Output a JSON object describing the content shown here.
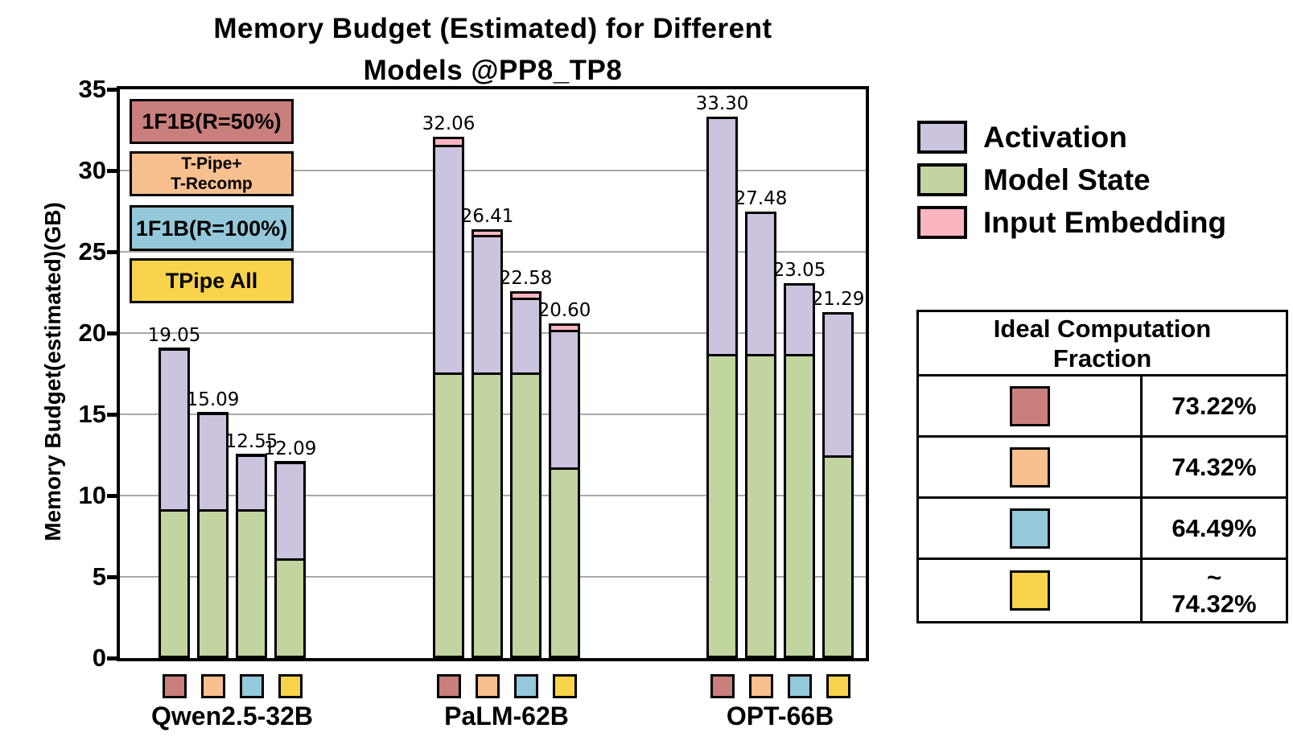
{
  "title": {
    "line1": "Memory Budget (Estimated) for Different",
    "line2": "Models @PP8_TP8"
  },
  "y_axis": {
    "label": "Memory Budget(estimated)(GB)",
    "ticks": [
      0,
      5,
      10,
      15,
      20,
      25,
      30,
      35
    ],
    "gridlines": [
      5,
      10,
      15,
      20,
      25,
      30
    ],
    "max": 35
  },
  "colors": {
    "method_1f1b_r50": "#C97F7C",
    "method_tpipe_trecomp": "#F8C08F",
    "method_1f1b_r100": "#93C9DB",
    "method_tpipe_all": "#F9D34C",
    "activation": "#CCC3DE",
    "model_state": "#C2D5A0",
    "input_embedding": "#FBB5C0",
    "gridline": "#A9A9A9",
    "border": "#000000"
  },
  "method_legend": [
    {
      "lines": [
        "1F1B(R=50%)"
      ],
      "color": "method_1f1b_r50"
    },
    {
      "lines": [
        "T-Pipe+",
        "T-Recomp"
      ],
      "color": "method_tpipe_trecomp"
    },
    {
      "lines": [
        "1F1B(R=100%)"
      ],
      "color": "method_1f1b_r100"
    },
    {
      "lines": [
        "TPipe All"
      ],
      "color": "method_tpipe_all"
    }
  ],
  "series_legend": [
    {
      "label": "Activation",
      "color": "activation"
    },
    {
      "label": "Model State",
      "color": "model_state"
    },
    {
      "label": "Input Embedding",
      "color": "input_embedding"
    }
  ],
  "chart_data": {
    "type": "bar",
    "stacked": true,
    "title": "Memory Budget (Estimated) for Different Models @PP8_TP8",
    "ylabel": "Memory Budget(estimated)(GB)",
    "ylim": [
      0,
      35
    ],
    "grid": true,
    "legend_position": "right",
    "categories": [
      "Qwen2.5-32B",
      "PaLM-62B",
      "OPT-66B"
    ],
    "methods": [
      "1F1B(R=50%)",
      "T-Pipe+T-Recomp",
      "1F1B(R=100%)",
      "TPipe All"
    ],
    "totals": [
      [
        19.05,
        15.09,
        12.55,
        12.09
      ],
      [
        32.06,
        26.41,
        22.58,
        20.6
      ],
      [
        33.3,
        27.48,
        23.05,
        21.29
      ]
    ],
    "total_labels": [
      [
        "19.05",
        "15.09",
        "12.55",
        "12.09"
      ],
      [
        "32.06",
        "26.41",
        "22.58",
        "20.60"
      ],
      [
        "33.30",
        "27.48",
        "23.05",
        "21.29"
      ]
    ],
    "series": [
      {
        "name": "Model State",
        "values": [
          [
            9.0,
            9.0,
            9.0,
            6.0
          ],
          [
            17.45,
            17.45,
            17.45,
            11.6
          ],
          [
            18.55,
            18.55,
            18.55,
            12.35
          ]
        ]
      },
      {
        "name": "Activation",
        "values": [
          [
            9.95,
            5.99,
            3.45,
            5.99
          ],
          [
            14.0,
            8.45,
            4.58,
            8.45
          ],
          [
            14.75,
            8.93,
            4.5,
            8.94
          ]
        ]
      },
      {
        "name": "Input Embedding",
        "values": [
          [
            0.1,
            0.1,
            0.1,
            0.1
          ],
          [
            0.61,
            0.51,
            0.55,
            0.55
          ],
          [
            0,
            0,
            0,
            0
          ]
        ]
      }
    ]
  },
  "table": {
    "header_lines": [
      "Ideal Computation",
      "Fraction"
    ],
    "rows": [
      {
        "color": "method_1f1b_r50",
        "value_lines": [
          "73.22%"
        ]
      },
      {
        "color": "method_tpipe_trecomp",
        "value_lines": [
          "74.32%"
        ]
      },
      {
        "color": "method_1f1b_r100",
        "value_lines": [
          "64.49%"
        ]
      },
      {
        "color": "method_tpipe_all",
        "value_lines": [
          "~",
          "74.32%"
        ]
      }
    ]
  }
}
